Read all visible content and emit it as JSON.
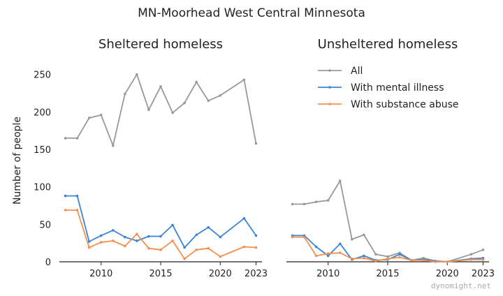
{
  "suptitle": "MN-Moorhead West Central Minnesota",
  "watermark": "dynomight.net",
  "colors": {
    "all": "#999999",
    "mental": "#3b84d6",
    "substance": "#f58f4e",
    "axis": "#222222"
  },
  "chart_data": [
    {
      "type": "line",
      "title": "Sheltered homeless",
      "ylabel": "Number of people",
      "xlim": [
        2006.5,
        2023.5
      ],
      "ylim": [
        0,
        260
      ],
      "yticks": [
        0,
        50,
        100,
        150,
        200,
        250
      ],
      "xticks": [
        2010,
        2015,
        2020,
        2023
      ],
      "grid": false,
      "x": [
        2007,
        2008,
        2009,
        2010,
        2011,
        2012,
        2013,
        2014,
        2015,
        2016,
        2017,
        2018,
        2019,
        2020,
        2022,
        2023
      ],
      "series": [
        {
          "name": "All",
          "color": "#999999",
          "values": [
            165,
            165,
            192,
            196,
            155,
            224,
            250,
            203,
            234,
            199,
            212,
            240,
            215,
            222,
            243,
            158
          ]
        },
        {
          "name": "With mental illness",
          "color": "#3b84d6",
          "values": [
            88,
            88,
            27,
            35,
            42,
            33,
            28,
            34,
            34,
            49,
            19,
            36,
            46,
            33,
            58,
            35
          ]
        },
        {
          "name": "With substance abuse",
          "color": "#f58f4e",
          "values": [
            69,
            69,
            19,
            26,
            28,
            21,
            37,
            18,
            16,
            28,
            4,
            16,
            18,
            7,
            20,
            19
          ]
        }
      ]
    },
    {
      "type": "line",
      "title": "Unsheltered homeless",
      "xlim": [
        2006.5,
        2023.5
      ],
      "ylim": [
        0,
        260
      ],
      "xticks": [
        2010,
        2015,
        2020,
        2023
      ],
      "grid": false,
      "legend": "top-right",
      "x": [
        2007,
        2008,
        2009,
        2010,
        2011,
        2012,
        2013,
        2014,
        2015,
        2016,
        2017,
        2018,
        2019,
        2020,
        2022,
        2023
      ],
      "series": [
        {
          "name": "All",
          "color": "#999999",
          "values": [
            77,
            77,
            80,
            82,
            108,
            30,
            36,
            10,
            7,
            12,
            2,
            5,
            1,
            0,
            10,
            16
          ]
        },
        {
          "name": "With mental illness",
          "color": "#3b84d6",
          "values": [
            35,
            35,
            20,
            8,
            24,
            3,
            8,
            2,
            3,
            10,
            2,
            3,
            1,
            0,
            4,
            5
          ]
        },
        {
          "name": "With substance abuse",
          "color": "#f58f4e",
          "values": [
            33,
            33,
            8,
            11,
            12,
            4,
            5,
            1,
            4,
            6,
            2,
            2,
            0,
            0,
            3,
            3
          ]
        }
      ]
    }
  ]
}
